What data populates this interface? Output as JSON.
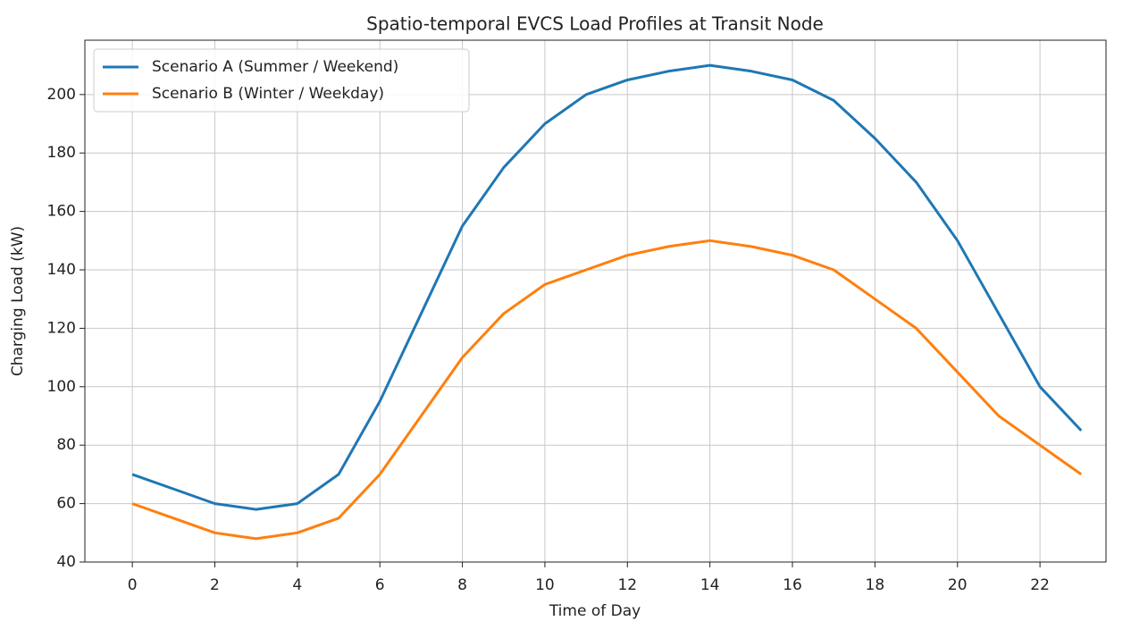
{
  "chart_data": {
    "type": "line",
    "title": "Spatio-temporal EVCS Load Profiles at Transit Node",
    "xlabel": "Time of Day",
    "ylabel": "Charging Load (kW)",
    "x": [
      0,
      1,
      2,
      3,
      4,
      5,
      6,
      7,
      8,
      9,
      10,
      11,
      12,
      13,
      14,
      15,
      16,
      17,
      18,
      19,
      20,
      21,
      22,
      23
    ],
    "series": [
      {
        "name": "Scenario A (Summer / Weekend)",
        "color": "#1f77b4",
        "values": [
          70,
          65,
          60,
          58,
          60,
          70,
          95,
          125,
          155,
          175,
          190,
          200,
          205,
          208,
          210,
          208,
          205,
          198,
          185,
          170,
          150,
          125,
          100,
          85
        ]
      },
      {
        "name": "Scenario B (Winter / Weekday)",
        "color": "#ff7f0e",
        "values": [
          60,
          55,
          50,
          48,
          50,
          55,
          70,
          90,
          110,
          125,
          135,
          140,
          145,
          148,
          150,
          148,
          145,
          140,
          130,
          120,
          105,
          90,
          80,
          70
        ]
      }
    ],
    "xlim": [
      -1.15,
      23.6
    ],
    "ylim": [
      40,
      218.6
    ],
    "xticks": [
      0,
      2,
      4,
      6,
      8,
      10,
      12,
      14,
      16,
      18,
      20,
      22
    ],
    "yticks": [
      40,
      60,
      80,
      100,
      120,
      140,
      160,
      180,
      200
    ],
    "grid": true,
    "legend": "upper left"
  }
}
